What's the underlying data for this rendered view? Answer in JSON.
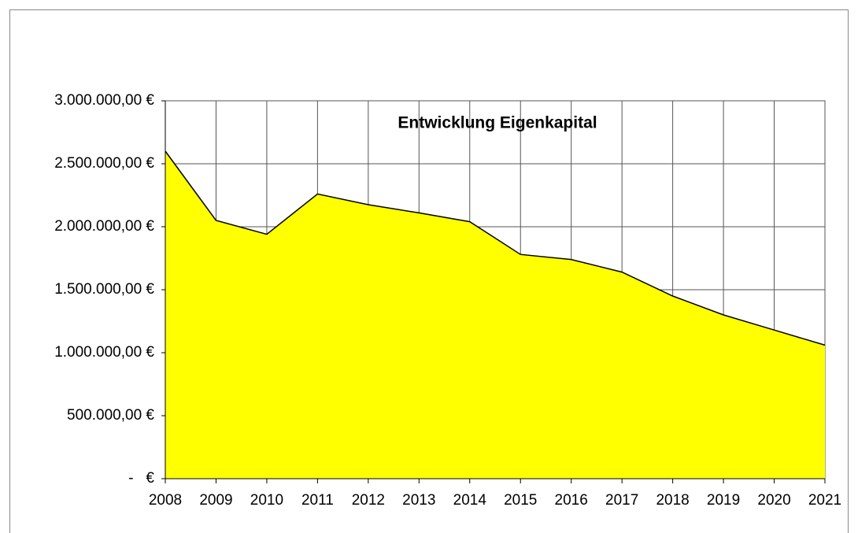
{
  "chart_data": {
    "type": "area",
    "title": "Entwicklung Eigenkapital",
    "categories": [
      "2008",
      "2009",
      "2010",
      "2011",
      "2012",
      "2013",
      "2014",
      "2015",
      "2016",
      "2017",
      "2018",
      "2019",
      "2020",
      "2021"
    ],
    "values": [
      2600000,
      2050000,
      1940000,
      2260000,
      2175000,
      2110000,
      2040000,
      1780000,
      1740000,
      1640000,
      1450000,
      1300000,
      1180000,
      1060000
    ],
    "color": "#ffff00",
    "ylim": [
      0,
      3000000
    ],
    "yticks": [
      {
        "value": 0,
        "label": "-   €"
      },
      {
        "value": 500000,
        "label": "500.000,00 €"
      },
      {
        "value": 1000000,
        "label": "1.000.000,00 €"
      },
      {
        "value": 1500000,
        "label": "1.500.000,00 €"
      },
      {
        "value": 2000000,
        "label": "2.000.000,00 €"
      },
      {
        "value": 2500000,
        "label": "2.500.000,00 €"
      },
      {
        "value": 3000000,
        "label": "3.000.000,00 €"
      }
    ],
    "grid": true
  }
}
